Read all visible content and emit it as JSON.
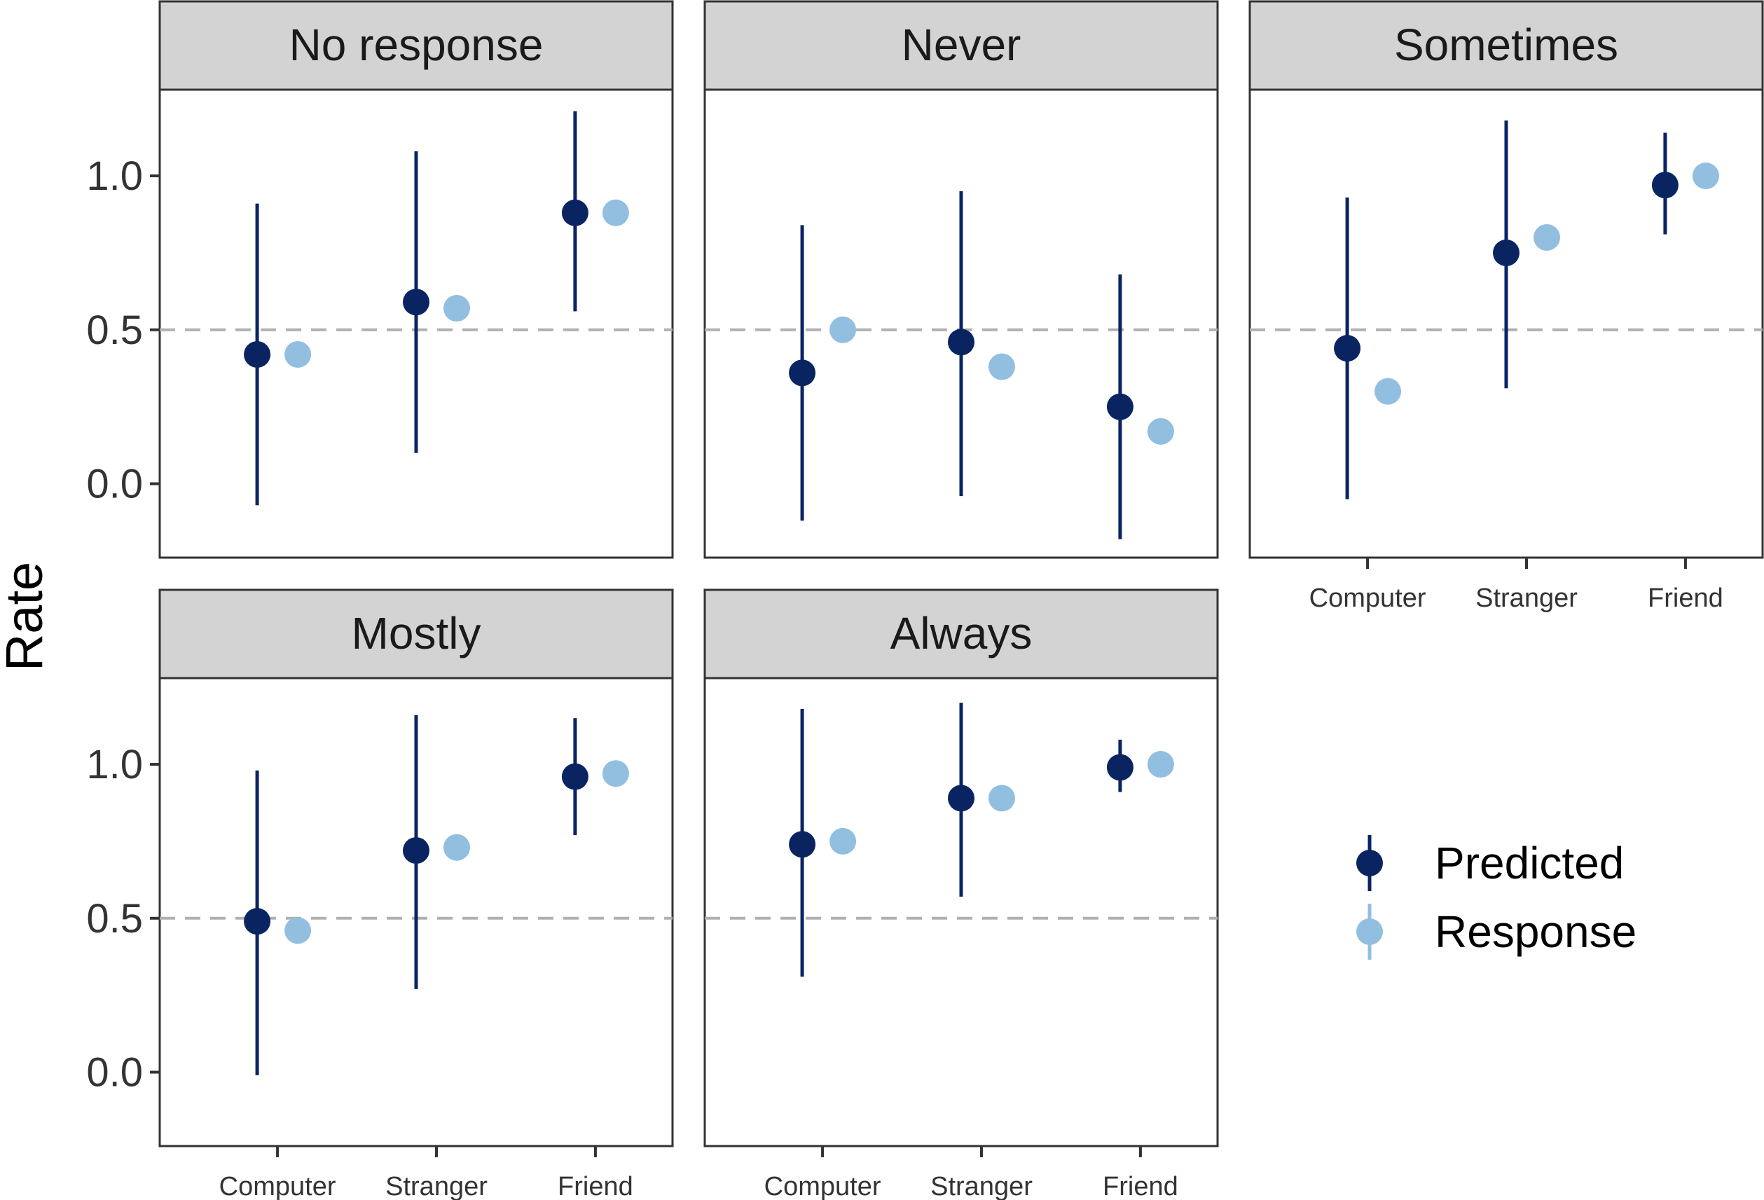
{
  "chart_data": {
    "type": "scatter",
    "ylabel": "Rate",
    "categories": [
      "Computer",
      "Stranger",
      "Friend"
    ],
    "y_ticks": [
      "1.0",
      "0.5",
      "0.0"
    ],
    "reference_line": 0.5,
    "grid": false,
    "legend_position": "right",
    "colors": {
      "predicted": "#0a2461",
      "response": "#92bfe0",
      "reference": "#b0b0b0",
      "strip_fill": "#d3d3d3",
      "panel_border": "#333333"
    },
    "legend": [
      {
        "key": "predicted",
        "label": "Predicted"
      },
      {
        "key": "response",
        "label": "Response"
      }
    ],
    "panels": [
      {
        "title": "No response",
        "predicted": [
          0.42,
          0.59,
          0.88
        ],
        "lower": [
          -0.07,
          0.1,
          0.56
        ],
        "upper": [
          0.91,
          1.08,
          1.21
        ],
        "response": [
          0.42,
          0.57,
          0.88
        ]
      },
      {
        "title": "Never",
        "predicted": [
          0.36,
          0.46,
          0.25
        ],
        "lower": [
          -0.12,
          -0.04,
          -0.18
        ],
        "upper": [
          0.84,
          0.95,
          0.68
        ],
        "response": [
          0.5,
          0.38,
          0.17
        ]
      },
      {
        "title": "Sometimes",
        "predicted": [
          0.44,
          0.75,
          0.97
        ],
        "lower": [
          -0.05,
          0.31,
          0.81
        ],
        "upper": [
          0.93,
          1.18,
          1.14
        ],
        "response": [
          0.3,
          0.8,
          1.0
        ]
      },
      {
        "title": "Mostly",
        "predicted": [
          0.49,
          0.72,
          0.96
        ],
        "lower": [
          -0.01,
          0.27,
          0.77
        ],
        "upper": [
          0.98,
          1.16,
          1.15
        ],
        "response": [
          0.46,
          0.73,
          0.97
        ]
      },
      {
        "title": "Always",
        "predicted": [
          0.74,
          0.89,
          0.99
        ],
        "lower": [
          0.31,
          0.57,
          0.91
        ],
        "upper": [
          1.18,
          1.2,
          1.08
        ],
        "response": [
          0.75,
          0.89,
          1.0
        ]
      }
    ]
  }
}
